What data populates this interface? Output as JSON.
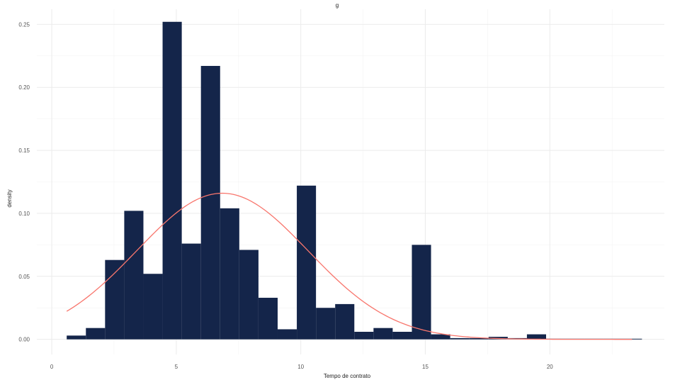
{
  "chart_data": {
    "type": "bar",
    "title": "g",
    "xlabel": "Tempo de contrato",
    "ylabel": "density",
    "xlim": [
      -0.6,
      24.6
    ],
    "ylim": [
      -0.012,
      0.262
    ],
    "x_ticks": [
      0,
      5,
      10,
      15,
      20
    ],
    "x_tick_labels": [
      "0",
      "5",
      "10",
      "15",
      "20"
    ],
    "y_ticks": [
      0,
      0.05,
      0.1,
      0.15,
      0.2,
      0.25
    ],
    "y_tick_labels": [
      "0.00",
      "0.05",
      "0.10",
      "0.15",
      "0.20",
      "0.25"
    ],
    "grid": true,
    "bar_color": "#14254a",
    "curve_color": "#f8766d",
    "bins": [
      {
        "x0": 0.6,
        "x1": 1.37,
        "density": 0.003
      },
      {
        "x0": 1.37,
        "x1": 2.14,
        "density": 0.009
      },
      {
        "x0": 2.14,
        "x1": 2.91,
        "density": 0.063
      },
      {
        "x0": 2.91,
        "x1": 3.68,
        "density": 0.102
      },
      {
        "x0": 3.68,
        "x1": 4.45,
        "density": 0.052
      },
      {
        "x0": 4.45,
        "x1": 5.22,
        "density": 0.252
      },
      {
        "x0": 5.22,
        "x1": 5.99,
        "density": 0.076
      },
      {
        "x0": 5.99,
        "x1": 6.76,
        "density": 0.217
      },
      {
        "x0": 6.76,
        "x1": 7.53,
        "density": 0.104
      },
      {
        "x0": 7.53,
        "x1": 8.3,
        "density": 0.071
      },
      {
        "x0": 8.3,
        "x1": 9.07,
        "density": 0.033
      },
      {
        "x0": 9.07,
        "x1": 9.84,
        "density": 0.008
      },
      {
        "x0": 9.84,
        "x1": 10.61,
        "density": 0.122
      },
      {
        "x0": 10.61,
        "x1": 11.38,
        "density": 0.025
      },
      {
        "x0": 11.38,
        "x1": 12.15,
        "density": 0.028
      },
      {
        "x0": 12.15,
        "x1": 12.92,
        "density": 0.006
      },
      {
        "x0": 12.92,
        "x1": 13.69,
        "density": 0.009
      },
      {
        "x0": 13.69,
        "x1": 14.46,
        "density": 0.006
      },
      {
        "x0": 14.46,
        "x1": 15.23,
        "density": 0.075
      },
      {
        "x0": 15.23,
        "x1": 16.0,
        "density": 0.004
      },
      {
        "x0": 16.0,
        "x1": 16.77,
        "density": 0.001
      },
      {
        "x0": 16.77,
        "x1": 17.54,
        "density": 0.001
      },
      {
        "x0": 17.54,
        "x1": 18.31,
        "density": 0.002
      },
      {
        "x0": 18.31,
        "x1": 19.08,
        "density": 0.001
      },
      {
        "x0": 19.08,
        "x1": 19.85,
        "density": 0.004
      },
      {
        "x0": 19.85,
        "x1": 20.62,
        "density": 0.0005
      },
      {
        "x0": 20.62,
        "x1": 21.39,
        "density": 0.0005
      },
      {
        "x0": 21.39,
        "x1": 22.16,
        "density": 0.0005
      },
      {
        "x0": 22.16,
        "x1": 22.93,
        "density": 0.0005
      },
      {
        "x0": 22.93,
        "x1": 23.7,
        "density": 0.0005
      }
    ],
    "density_curve": {
      "type": "normal",
      "mean": 6.85,
      "sd": 3.44,
      "x_range": [
        0.6,
        23.3
      ]
    }
  }
}
